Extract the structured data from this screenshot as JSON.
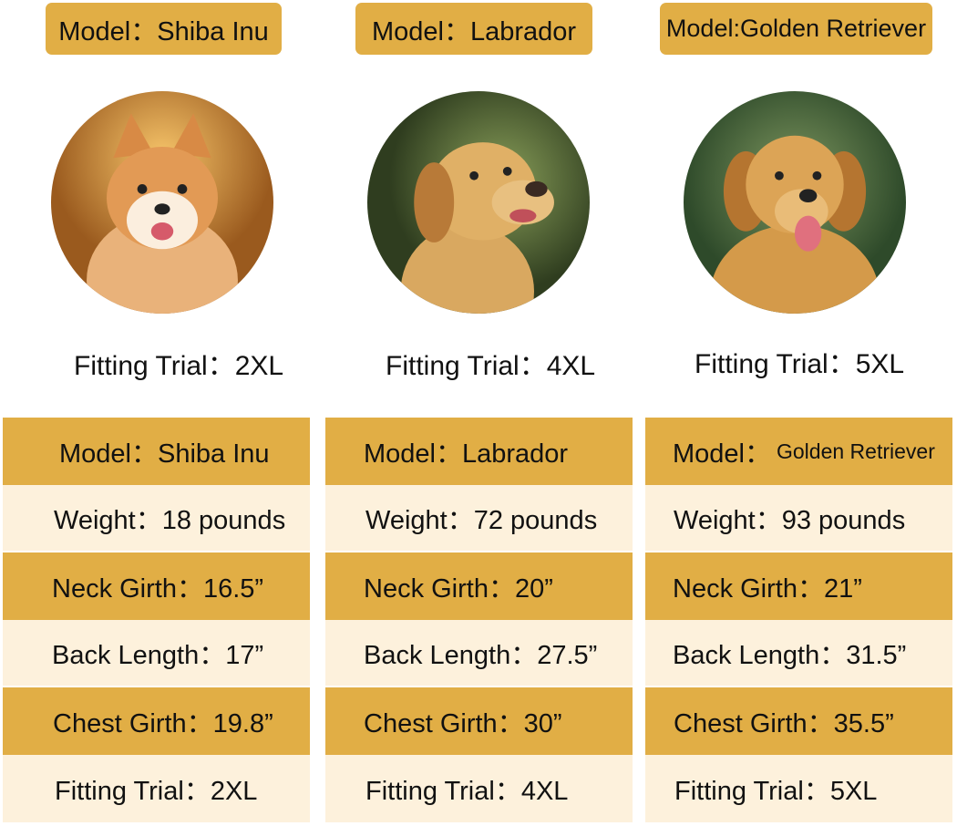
{
  "colors": {
    "gold": "#E1AE45",
    "cream": "#FDF1DC"
  },
  "dogs": [
    {
      "badge": "Model：Shiba Inu",
      "photo": "shiba-inu-photo",
      "fitting": "Fitting Trial：2XL",
      "table": {
        "model": "Model：Shiba Inu",
        "weight": "Weight：18 pounds",
        "neck": "Neck Girth：16.5”",
        "back": "Back Length：17”",
        "chest": "Chest Girth：19.8”",
        "fitting": "Fitting Trial：2XL"
      }
    },
    {
      "badge": "Model：Labrador",
      "photo": "labrador-photo",
      "fitting": "Fitting Trial：4XL",
      "table": {
        "model": "Model：Labrador",
        "weight": "Weight：72 pounds",
        "neck": "Neck Girth：20”",
        "back": "Back Length：27.5”",
        "chest": "Chest Girth：30”",
        "fitting": "Fitting Trial：4XL"
      }
    },
    {
      "badge": "Model:Golden Retriever",
      "photo": "golden-retriever-photo",
      "fitting": "Fitting Trial：5XL",
      "table": {
        "model_label": "Model：",
        "model_value": "Golden Retriever",
        "weight": "Weight：93 pounds",
        "neck": "Neck Girth：21”",
        "back": "Back Length：31.5”",
        "chest": "Chest Girth：35.5”",
        "fitting": "Fitting Trial：5XL"
      }
    }
  ]
}
